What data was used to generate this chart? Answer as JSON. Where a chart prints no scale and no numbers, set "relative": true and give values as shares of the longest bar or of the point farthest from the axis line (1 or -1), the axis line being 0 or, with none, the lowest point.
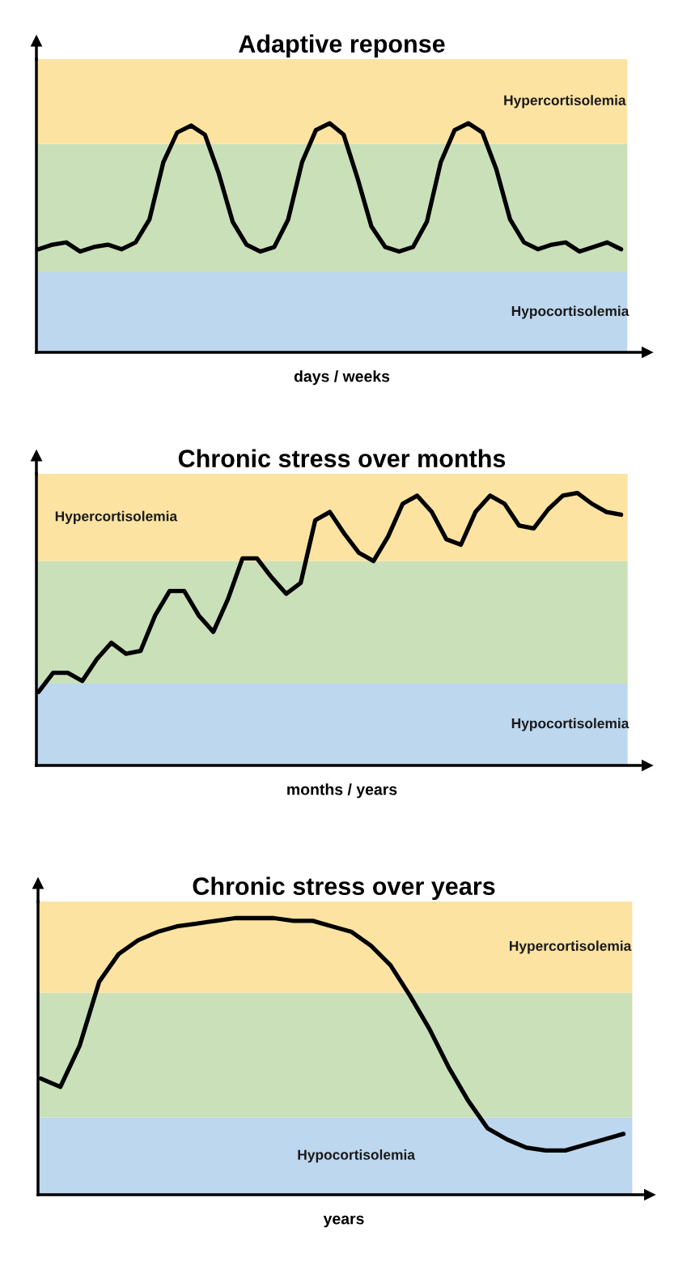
{
  "chart_data": [
    {
      "type": "line",
      "title": "Adaptive reponse",
      "xlabel": "days / weeks",
      "relative": true,
      "categories": [
        null,
        null,
        null,
        null,
        null,
        null,
        null,
        null,
        null,
        null,
        null,
        null,
        null,
        null,
        null,
        null,
        null,
        null,
        null,
        null,
        null,
        null,
        null,
        null,
        null,
        null,
        null,
        null,
        null,
        null,
        null,
        null,
        null,
        null,
        null,
        null,
        null,
        null,
        null,
        null,
        null,
        null,
        null
      ],
      "series": [
        {
          "color": "#000000",
          "values": [
            0.45,
            0.47,
            0.48,
            0.44,
            0.46,
            0.47,
            0.45,
            0.48,
            0.58,
            0.83,
            0.96,
            0.99,
            0.95,
            0.78,
            0.57,
            0.47,
            0.44,
            0.46,
            0.58,
            0.83,
            0.97,
            1.0,
            0.95,
            0.76,
            0.55,
            0.46,
            0.44,
            0.46,
            0.57,
            0.83,
            0.97,
            1.0,
            0.96,
            0.8,
            0.58,
            0.48,
            0.45,
            0.47,
            0.48,
            0.44,
            0.46,
            0.48,
            0.45
          ]
        }
      ],
      "bands": [
        {
          "axis": "y",
          "from": 0,
          "to": 0.35,
          "label": "Hypocortisolemia",
          "color": "#bdd7ee"
        },
        {
          "axis": "y",
          "from": 0.35,
          "to": 0.91,
          "color": "#c9e0b9"
        },
        {
          "axis": "y",
          "from": 0.91,
          "to": 1.28,
          "label": "Hypercortisolemia",
          "color": "#fce3a2"
        }
      ]
    },
    {
      "type": "line",
      "title": "Chronic stress over months",
      "xlabel": "months / years",
      "relative": true,
      "categories": [
        null,
        null,
        null,
        null,
        null,
        null,
        null,
        null,
        null,
        null,
        null,
        null,
        null,
        null,
        null,
        null,
        null,
        null,
        null,
        null,
        null,
        null,
        null,
        null,
        null,
        null,
        null,
        null,
        null,
        null,
        null,
        null,
        null,
        null,
        null,
        null,
        null,
        null,
        null,
        null,
        null
      ],
      "series": [
        {
          "color": "#000000",
          "values": [
            0.27,
            0.34,
            0.34,
            0.31,
            0.39,
            0.45,
            0.41,
            0.42,
            0.55,
            0.64,
            0.64,
            0.55,
            0.49,
            0.61,
            0.76,
            0.76,
            0.69,
            0.63,
            0.67,
            0.9,
            0.93,
            0.85,
            0.78,
            0.75,
            0.84,
            0.96,
            0.99,
            0.93,
            0.83,
            0.81,
            0.93,
            0.99,
            0.96,
            0.88,
            0.87,
            0.94,
            0.99,
            1.0,
            0.96,
            0.93,
            0.92
          ]
        }
      ],
      "bands": [
        {
          "axis": "y",
          "from": 0,
          "to": 0.3,
          "label": "Hypocortisolemia",
          "color": "#bdd7ee"
        },
        {
          "axis": "y",
          "from": 0.3,
          "to": 0.75,
          "color": "#c9e0b9"
        },
        {
          "axis": "y",
          "from": 0.75,
          "to": 1.07,
          "label": "Hypercortisolemia",
          "color": "#fce3a2"
        }
      ]
    },
    {
      "type": "line",
      "title": "Chronic stress over years",
      "xlabel": "years",
      "relative": true,
      "categories": [
        null,
        null,
        null,
        null,
        null,
        null,
        null,
        null,
        null,
        null,
        null,
        null,
        null,
        null,
        null,
        null,
        null,
        null,
        null,
        null,
        null,
        null,
        null,
        null,
        null,
        null,
        null,
        null,
        null,
        null,
        null
      ],
      "series": [
        {
          "color": "#000000",
          "values": [
            0.42,
            0.39,
            0.54,
            0.77,
            0.87,
            0.92,
            0.95,
            0.97,
            0.98,
            0.99,
            1.0,
            1.0,
            1.0,
            0.99,
            0.99,
            0.97,
            0.95,
            0.9,
            0.83,
            0.72,
            0.6,
            0.46,
            0.34,
            0.24,
            0.2,
            0.17,
            0.16,
            0.16,
            0.18,
            0.2,
            0.22
          ]
        }
      ],
      "bands": [
        {
          "axis": "y",
          "from": 0,
          "to": 0.28,
          "label": "Hypocortisolemia",
          "color": "#bdd7ee"
        },
        {
          "axis": "y",
          "from": 0.28,
          "to": 0.73,
          "color": "#c9e0b9"
        },
        {
          "axis": "y",
          "from": 0.73,
          "to": 1.06,
          "label": "Hypercortisolemia",
          "color": "#fce3a2"
        }
      ]
    }
  ]
}
